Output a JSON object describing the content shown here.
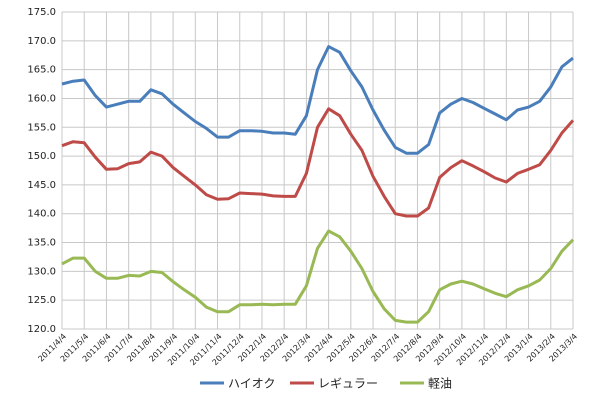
{
  "chart_data": {
    "type": "line",
    "categories": [
      "2011/4/4",
      null,
      "2011/5/4",
      null,
      "2011/6/4",
      null,
      "2011/7/4",
      null,
      "2011/8/4",
      null,
      "2011/9/4",
      null,
      "2011/10/4",
      null,
      "2011/11/4",
      null,
      "2011/12/4",
      null,
      "2012/1/4",
      null,
      "2012/2/4",
      null,
      "2012/3/4",
      null,
      "2012/4/4",
      null,
      "2012/5/4",
      null,
      "2012/6/4",
      null,
      "2012/7/4",
      null,
      "2012/8/4",
      null,
      "2012/9/4",
      null,
      "2012/10/4",
      null,
      "2012/11/4",
      null,
      "2012/12/4",
      null,
      "2013/1/4",
      null,
      "2013/2/4",
      null,
      "2013/3/4"
    ],
    "series": [
      {
        "name": "ハイオク",
        "color": "#4a7ebb",
        "values": [
          162.5,
          163,
          163.2,
          160.5,
          158.5,
          159,
          159.5,
          159.5,
          161.5,
          160.8,
          159,
          157.5,
          156,
          154.8,
          153.3,
          153.3,
          154.4,
          154.4,
          154.3,
          154,
          154,
          153.8,
          157,
          165,
          169,
          168,
          164.8,
          162,
          158,
          154.5,
          151.5,
          150.5,
          150.5,
          152,
          157.5,
          159,
          160,
          159.3,
          158.3,
          157.3,
          156.3,
          158,
          158.5,
          159.5,
          162,
          165.5,
          167
        ]
      },
      {
        "name": "レギュラー",
        "color": "#be4b48",
        "values": [
          151.8,
          152.5,
          152.3,
          149.8,
          147.7,
          147.8,
          148.7,
          149,
          150.7,
          150,
          148,
          146.5,
          145,
          143.3,
          142.5,
          142.6,
          143.6,
          143.5,
          143.4,
          143.1,
          143,
          143,
          147,
          155,
          158.2,
          157,
          153.8,
          151,
          146.5,
          143,
          140,
          139.6,
          139.6,
          141,
          146.3,
          148,
          149.2,
          148.3,
          147.3,
          146.2,
          145.5,
          147,
          147.7,
          148.5,
          151,
          154,
          156.2
        ]
      },
      {
        "name": "軽油",
        "color": "#98b954",
        "values": [
          131.3,
          132.3,
          132.3,
          130,
          128.8,
          128.8,
          129.3,
          129.2,
          130,
          129.8,
          128.2,
          126.8,
          125.5,
          123.8,
          123,
          123,
          124.2,
          124.2,
          124.3,
          124.2,
          124.3,
          124.3,
          127.5,
          134,
          137,
          136,
          133.5,
          130.5,
          126.5,
          123.5,
          121.5,
          121.2,
          121.2,
          123,
          126.8,
          127.8,
          128.3,
          127.8,
          127,
          126.2,
          125.6,
          126.8,
          127.5,
          128.5,
          130.5,
          133.5,
          135.5
        ]
      }
    ],
    "ylim": [
      120,
      175
    ],
    "yticks": [
      {
        "value": 120,
        "label": "120.0"
      },
      {
        "value": 125,
        "label": "125.0"
      },
      {
        "value": 130,
        "label": "130.0"
      },
      {
        "value": 135,
        "label": "135.0"
      },
      {
        "value": 140,
        "label": "140.0"
      },
      {
        "value": 145,
        "label": "145.0"
      },
      {
        "value": 150,
        "label": "150.0"
      },
      {
        "value": 155,
        "label": "155.0"
      },
      {
        "value": 160,
        "label": "160.0"
      },
      {
        "value": 165,
        "label": "165.0"
      },
      {
        "value": 170,
        "label": "170.0"
      },
      {
        "value": 175,
        "label": "175.0"
      }
    ],
    "grid": true,
    "legend": "bottom"
  }
}
